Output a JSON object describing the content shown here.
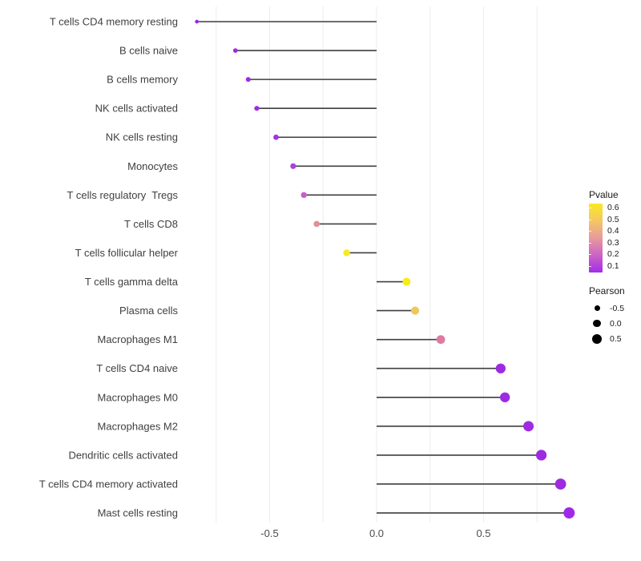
{
  "chart_data": {
    "type": "lollipop",
    "title": "",
    "xlabel": "",
    "ylabel": "",
    "x_ticks": [
      {
        "label": "-0.5",
        "value": -0.5
      },
      {
        "label": "0.0",
        "value": 0.0
      },
      {
        "label": "0.5",
        "value": 0.5
      }
    ],
    "xlim": [
      -0.93,
      0.98
    ],
    "grid": "faint vertical gridlines every 0.25, white background, no axis lines",
    "categories": [
      "T cells CD4 memory resting",
      "B cells naive",
      "B cells memory",
      "NK cells activated",
      "NK cells resting",
      "Monocytes",
      "T cells regulatory  Tregs",
      "T cells CD8",
      "T cells follicular helper",
      "T cells gamma delta",
      "Plasma cells",
      "Macrophages M1",
      "T cells CD4 naive",
      "Macrophages M0",
      "Macrophages M2",
      "Dendritic cells activated",
      "T cells CD4 memory activated",
      "Mast cells resting"
    ],
    "series": [
      {
        "name": "Pearson correlation (dot position & size), Pvalue (dot color)",
        "pearson": [
          -0.84,
          -0.66,
          -0.6,
          -0.56,
          -0.47,
          -0.39,
          -0.34,
          -0.28,
          -0.14,
          0.14,
          0.18,
          0.3,
          0.58,
          0.6,
          0.71,
          0.77,
          0.86,
          0.9
        ],
        "point_colors": [
          "#9F24E4",
          "#9D2BE0",
          "#9D2BE0",
          "#9E2DE0",
          "#A434DF",
          "#AB42D8",
          "#C75FC8",
          "#E18F98",
          "#F6EA1E",
          "#F8EB16",
          "#EEC75F",
          "#DC7AA0",
          "#9D2BE0",
          "#9D2BE0",
          "#9D2BE0",
          "#9D2BE0",
          "#9D2BE0",
          "#A228E8"
        ],
        "pvalue_from_color_approx": [
          0.05,
          0.05,
          0.05,
          0.05,
          0.07,
          0.1,
          0.2,
          0.35,
          0.55,
          0.6,
          0.45,
          0.35,
          0.05,
          0.05,
          0.05,
          0.05,
          0.05,
          0.05
        ]
      }
    ]
  },
  "legends": {
    "pvalue": {
      "title": "Pvalue",
      "tick_labels": [
        "0.6",
        "0.5",
        "0.4",
        "0.3",
        "0.2",
        "0.1"
      ],
      "gradient_top_to_bottom": [
        "#FAE822",
        "#F4C763",
        "#E89A9C",
        "#CC63C4",
        "#A22CEA"
      ]
    },
    "pearson": {
      "title": "Pearson",
      "items": [
        {
          "label": "-0.5",
          "size": 7
        },
        {
          "label": "0.0",
          "size": 9.5
        },
        {
          "label": "0.5",
          "size": 12
        }
      ],
      "dot_color": "#000000"
    }
  },
  "colors": {
    "background": "#FFFFFF",
    "stick": "#3F3F3F",
    "grid": "#EDEDED",
    "axis_text": "#4D4D4D",
    "category_text": "#404040"
  }
}
